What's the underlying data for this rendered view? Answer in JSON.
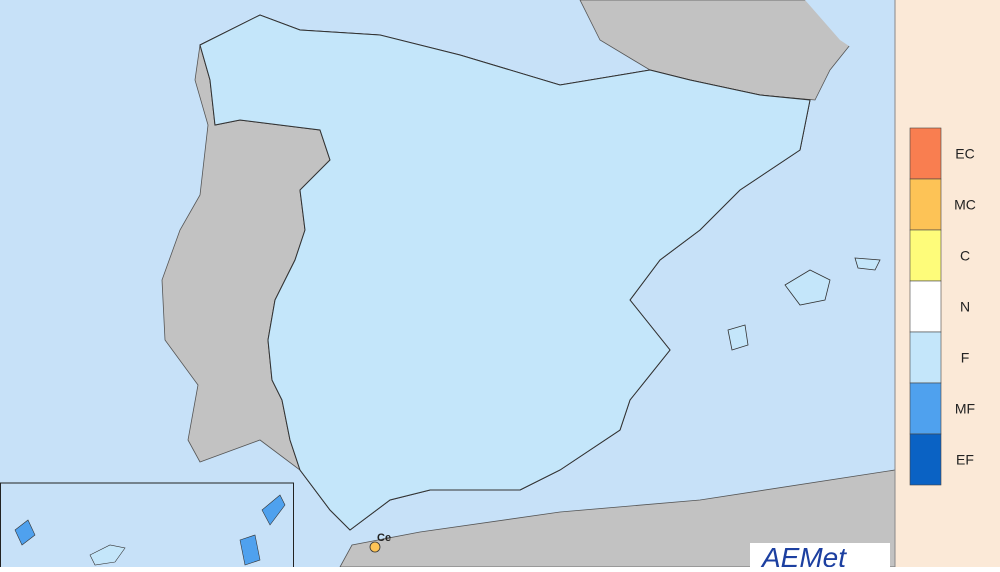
{
  "legend": {
    "items": [
      {
        "label": "EC",
        "color": "#f97e50"
      },
      {
        "label": "MC",
        "color": "#fdc356"
      },
      {
        "label": "C",
        "color": "#fefc7a"
      },
      {
        "label": "N",
        "color": "#ffffff"
      },
      {
        "label": "F",
        "color": "#c4e6fa"
      },
      {
        "label": "MF",
        "color": "#4fa1ee"
      },
      {
        "label": "EF",
        "color": "#0a62c4"
      }
    ]
  },
  "map": {
    "place_label": "Ce",
    "logo": "AEMet"
  }
}
